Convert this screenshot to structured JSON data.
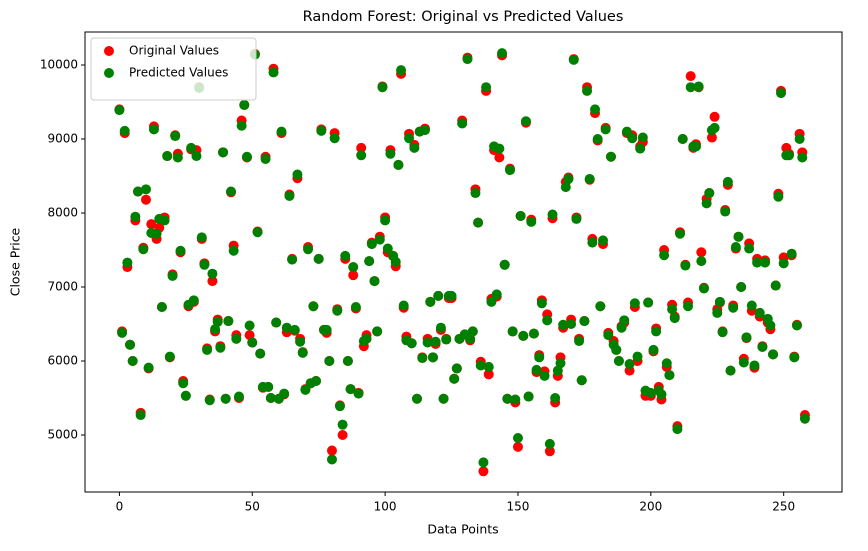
{
  "chart_data": {
    "type": "scatter",
    "title": "Random Forest: Original vs Predicted Values",
    "xlabel": "Data Points",
    "ylabel": "Close Price",
    "legend": "upper left",
    "grid": false,
    "xlim": [
      -12.95,
      271.95
    ],
    "ylim": [
      4230,
      10446
    ],
    "xticks": [
      0,
      50,
      100,
      150,
      200,
      250
    ],
    "yticks": [
      5000,
      6000,
      7000,
      8000,
      9000,
      10000
    ],
    "x": [
      0,
      1,
      2,
      3,
      4,
      5,
      6,
      7,
      8,
      9,
      10,
      11,
      12,
      13,
      14,
      15,
      16,
      17,
      18,
      19,
      20,
      21,
      22,
      23,
      24,
      25,
      26,
      27,
      28,
      29,
      30,
      31,
      32,
      33,
      34,
      35,
      36,
      37,
      38,
      39,
      40,
      41,
      42,
      43,
      44,
      45,
      46,
      47,
      48,
      49,
      50,
      51,
      52,
      53,
      54,
      55,
      56,
      57,
      58,
      59,
      60,
      61,
      62,
      63,
      64,
      65,
      66,
      67,
      68,
      69,
      70,
      71,
      72,
      73,
      74,
      75,
      76,
      77,
      78,
      79,
      80,
      81,
      82,
      83,
      84,
      85,
      86,
      87,
      88,
      89,
      90,
      91,
      92,
      93,
      94,
      95,
      96,
      97,
      98,
      99,
      100,
      101,
      102,
      103,
      104,
      105,
      106,
      107,
      108,
      109,
      110,
      111,
      112,
      113,
      114,
      115,
      116,
      117,
      118,
      119,
      120,
      121,
      122,
      123,
      124,
      125,
      126,
      127,
      128,
      129,
      130,
      131,
      132,
      133,
      134,
      135,
      136,
      137,
      138,
      139,
      140,
      141,
      142,
      143,
      144,
      145,
      146,
      147,
      148,
      149,
      150,
      151,
      152,
      153,
      154,
      155,
      156,
      157,
      158,
      159,
      160,
      161,
      162,
      163,
      164,
      165,
      166,
      167,
      168,
      169,
      170,
      171,
      172,
      173,
      174,
      175,
      176,
      177,
      178,
      179,
      180,
      181,
      182,
      183,
      184,
      185,
      186,
      187,
      188,
      189,
      190,
      191,
      192,
      193,
      194,
      195,
      196,
      197,
      198,
      199,
      200,
      201,
      202,
      203,
      204,
      205,
      206,
      207,
      208,
      209,
      210,
      211,
      212,
      213,
      214,
      215,
      216,
      217,
      218,
      219,
      220,
      221,
      222,
      223,
      224,
      225,
      226,
      227,
      228,
      229,
      230,
      231,
      232,
      233,
      234,
      235,
      236,
      237,
      238,
      239,
      240,
      241,
      242,
      243,
      244,
      245,
      246,
      247,
      248,
      249,
      250,
      251,
      252,
      253,
      254,
      255,
      256,
      257,
      258
    ],
    "series": [
      {
        "name": "Original Values",
        "color": "#ff0000",
        "values": [
          9400,
          6400,
          9080,
          7270,
          6220,
          6000,
          7900,
          8290,
          5300,
          7530,
          8180,
          5900,
          7850,
          9170,
          7650,
          7800,
          6730,
          7940,
          8770,
          6050,
          7170,
          9050,
          8800,
          7470,
          5730,
          5530,
          6740,
          8860,
          6800,
          8850,
          9700,
          7650,
          7320,
          6170,
          5480,
          7080,
          6400,
          6560,
          6200,
          8820,
          5490,
          6540,
          8280,
          7560,
          6350,
          5500,
          9250,
          9460,
          8750,
          6350,
          6250,
          10150,
          7750,
          6100,
          5640,
          8760,
          5650,
          5500,
          9950,
          6520,
          5490,
          9080,
          5550,
          6390,
          8250,
          7380,
          6410,
          8470,
          6300,
          6120,
          5620,
          7540,
          5700,
          6740,
          5730,
          7380,
          9130,
          6420,
          6380,
          6000,
          4790,
          9080,
          6700,
          5400,
          5000,
          7380,
          6000,
          5620,
          7160,
          6710,
          5570,
          8880,
          6200,
          6350,
          7350,
          7600,
          7080,
          6400,
          7680,
          9710,
          7940,
          7470,
          8850,
          7420,
          7280,
          8650,
          9880,
          6720,
          6330,
          9070,
          6240,
          8920,
          5490,
          9100,
          6050,
          9140,
          6300,
          6800,
          6050,
          6230,
          6880,
          6420,
          5490,
          6300,
          6850,
          6850,
          5760,
          5900,
          6300,
          9250,
          6360,
          10100,
          6280,
          6400,
          8320,
          7870,
          5990,
          4510,
          9650,
          5820,
          6840,
          8850,
          6870,
          8750,
          10130,
          7300,
          5490,
          8600,
          6400,
          5440,
          4840,
          7960,
          6340,
          9220,
          5520,
          7910,
          6370,
          5850,
          6080,
          6820,
          5860,
          6630,
          4780,
          7930,
          5440,
          5800,
          6050,
          6450,
          8420,
          8480,
          6560,
          10080,
          7940,
          6300,
          5740,
          6540,
          9700,
          8450,
          7650,
          9350,
          8980,
          6740,
          7580,
          9150,
          6380,
          8760,
          6270,
          6150,
          6000,
          6470,
          6520,
          9080,
          5870,
          9050,
          6730,
          6000,
          8900,
          8960,
          5530,
          6790,
          5530,
          6130,
          6440,
          5650,
          5480,
          7500,
          5920,
          5810,
          6760,
          6600,
          5120,
          7740,
          9000,
          7300,
          6790,
          9850,
          8880,
          8930,
          9700,
          7470,
          6990,
          8190,
          8270,
          9020,
          9300,
          6700,
          6790,
          6400,
          8040,
          8380,
          5870,
          6750,
          7520,
          7680,
          7000,
          6030,
          6310,
          7590,
          6680,
          5910,
          7380,
          6600,
          6200,
          7360,
          6520,
          6430,
          6090,
          7020,
          8260,
          9650,
          7400,
          8880,
          8800,
          7430,
          6060,
          6490,
          9070,
          8820,
          5270
        ]
      },
      {
        "name": "Predicted Values",
        "color": "#008000",
        "values": [
          9390,
          6380,
          9110,
          7330,
          6220,
          6000,
          7950,
          8290,
          5270,
          7510,
          8320,
          5910,
          7730,
          9130,
          7720,
          7920,
          6730,
          7900,
          8770,
          6060,
          7150,
          9040,
          8750,
          7490,
          5700,
          5530,
          6760,
          8880,
          6820,
          8770,
          9690,
          7670,
          7300,
          6150,
          5470,
          7180,
          6430,
          6530,
          6180,
          8820,
          5490,
          6540,
          8290,
          7490,
          6300,
          5520,
          9180,
          9460,
          8760,
          6480,
          6250,
          10140,
          7740,
          6100,
          5650,
          8730,
          5650,
          5500,
          9900,
          6520,
          5490,
          9100,
          5560,
          6450,
          8230,
          7370,
          6420,
          8520,
          6260,
          6110,
          5610,
          7510,
          5700,
          6740,
          5730,
          7380,
          9110,
          6420,
          6420,
          6000,
          4670,
          9010,
          6680,
          5390,
          5140,
          7420,
          6000,
          5620,
          7270,
          6730,
          5560,
          8780,
          6270,
          6300,
          7350,
          7580,
          7080,
          6400,
          7640,
          9700,
          7900,
          7520,
          8800,
          7420,
          7340,
          8650,
          9930,
          6750,
          6280,
          9010,
          6240,
          8880,
          5490,
          9100,
          6040,
          9120,
          6250,
          6800,
          6050,
          6260,
          6880,
          6450,
          5490,
          6290,
          6880,
          6880,
          5760,
          5900,
          6300,
          9210,
          6360,
          10080,
          6300,
          6400,
          8270,
          7870,
          5940,
          4630,
          9700,
          5920,
          6800,
          8900,
          6900,
          8870,
          10160,
          7300,
          5490,
          8580,
          6400,
          5480,
          4960,
          7960,
          6340,
          9240,
          5520,
          7880,
          6370,
          5880,
          6050,
          6780,
          5800,
          6550,
          4880,
          7980,
          5500,
          5870,
          5970,
          6490,
          8350,
          8460,
          6500,
          10070,
          7920,
          6270,
          5740,
          6540,
          9650,
          8460,
          7600,
          9400,
          9000,
          6740,
          7630,
          9130,
          6350,
          8760,
          6220,
          6150,
          6000,
          6450,
          6550,
          9100,
          5960,
          9010,
          6780,
          6060,
          8870,
          9020,
          5600,
          6790,
          5570,
          6150,
          6400,
          5600,
          5550,
          7430,
          5970,
          5810,
          6700,
          6580,
          5080,
          7720,
          9000,
          7290,
          6740,
          9700,
          8900,
          8900,
          9710,
          7350,
          6980,
          8130,
          8270,
          9120,
          9150,
          6650,
          6800,
          6390,
          8020,
          8420,
          5870,
          6720,
          7540,
          7680,
          7000,
          5980,
          6320,
          7520,
          6750,
          5940,
          7330,
          6650,
          6190,
          7330,
          6570,
          6480,
          6090,
          7020,
          8220,
          9620,
          7320,
          8780,
          8780,
          7450,
          6050,
          6480,
          9000,
          8750,
          5220
        ]
      }
    ]
  }
}
